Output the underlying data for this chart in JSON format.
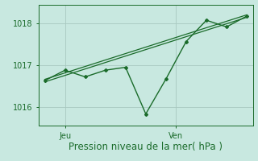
{
  "background_color": "#c8e8e0",
  "line_color": "#1a6b2a",
  "grid_color": "#a8c8c0",
  "text_color": "#1a6b2a",
  "xlabel": "Pression niveau de la mer( hPa )",
  "ylim": [
    1015.55,
    1018.45
  ],
  "yticks": [
    1016,
    1017,
    1018
  ],
  "x_main": [
    0,
    1,
    2,
    3,
    4,
    5,
    6,
    7,
    8,
    9,
    10
  ],
  "y_main": [
    1016.63,
    1016.88,
    1016.72,
    1016.88,
    1016.95,
    1015.83,
    1016.67,
    1017.57,
    1018.08,
    1017.92,
    1018.18
  ],
  "xtick_positions": [
    1.0,
    6.5
  ],
  "xtick_labels": [
    "Jeu",
    "Ven"
  ],
  "label_fontsize": 8.5,
  "tick_fontsize": 7
}
